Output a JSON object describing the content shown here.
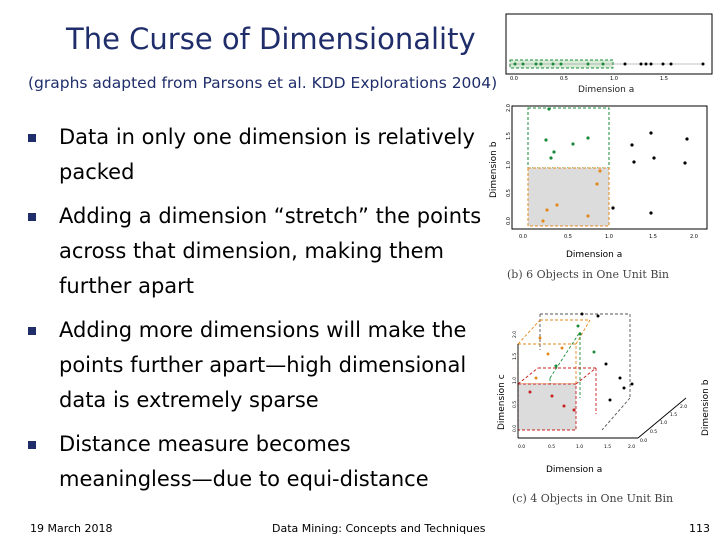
{
  "slide": {
    "title": "The Curse of Dimensionality",
    "subtitle": "(graphs adapted from Parsons et al. KDD Explorations 2004)",
    "bullets": [
      "Data in only one dimension is relatively packed",
      "Adding a dimension “stretch” the points across that dimension, making them further apart",
      "Adding more dimensions will make the points further apart—high dimensional data is extremely sparse",
      "Distance measure becomes meaningless—due to equi-distance"
    ]
  },
  "footer": {
    "date": "19 March 2018",
    "course": "Data Mining: Concepts and Techniques",
    "page": "113"
  },
  "figures": {
    "fig_a": {
      "xlabel": "Dimension a",
      "ticks": [
        "0.0",
        "0.5",
        "1.0",
        "1.5"
      ]
    },
    "fig_b": {
      "xlabel": "Dimension a",
      "ylabel": "Dimension b",
      "xticks": [
        "0.0",
        "0.5",
        "1.0",
        "1.5",
        "2.0"
      ],
      "yticks": [
        "0.0",
        "0.5",
        "1.0",
        "1.5",
        "2.0"
      ],
      "caption": "(b) 6 Objects in One Unit Bin"
    },
    "fig_c": {
      "xlabel": "Dimension a",
      "ylabel": "Dimension c",
      "zlabel": "Dimension b",
      "xticks": [
        "0.0",
        "0.5",
        "1.0",
        "1.5",
        "2.0"
      ],
      "yticks": [
        "0.0",
        "0.5",
        "1.0",
        "1.5",
        "2.0"
      ],
      "zticks": [
        "0.0",
        "0.5",
        "1.0",
        "1.5",
        "2.0"
      ],
      "caption": "(c) 4 Objects in One Unit Bin"
    }
  },
  "colors": {
    "title": "#1f2e6b",
    "green": "#1a8a3a",
    "orange": "#e38a1d",
    "red": "#c81e1e",
    "bin_fill": "#dcdcdc"
  }
}
